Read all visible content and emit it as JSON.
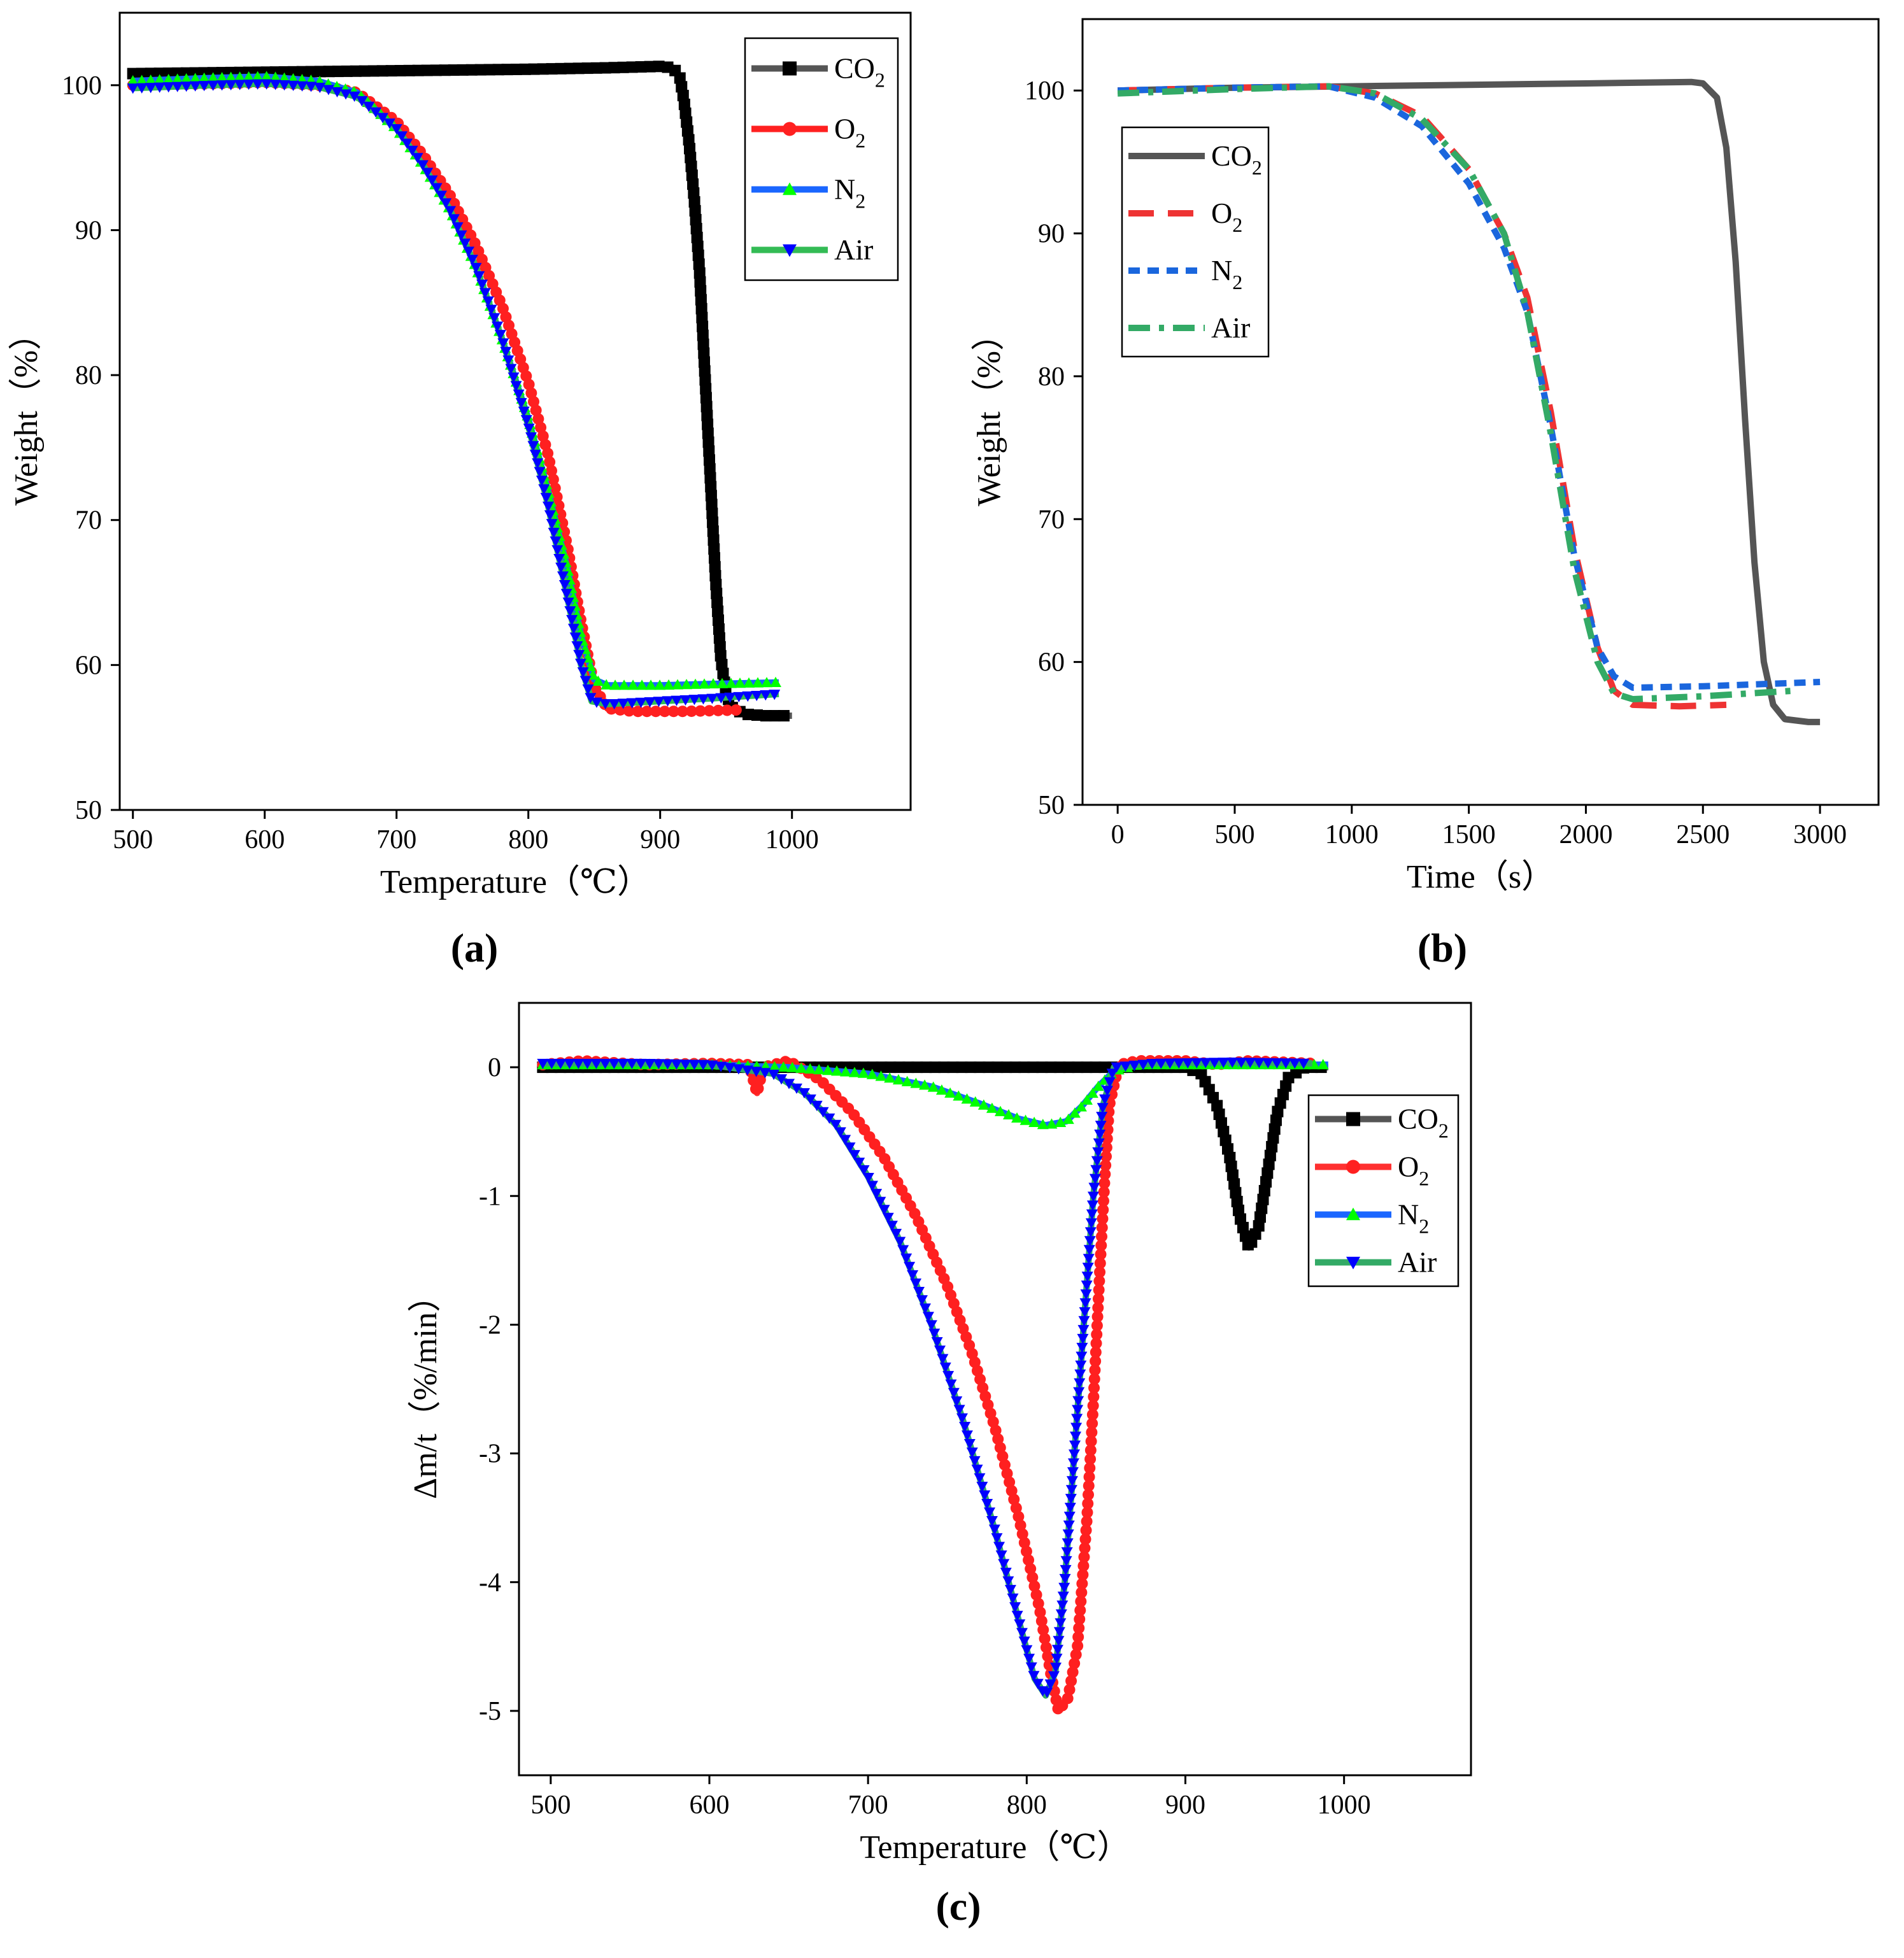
{
  "figure": {
    "panel_labels": [
      "(a)",
      "(b)",
      "(c)"
    ]
  },
  "chart_data": [
    {
      "type": "line",
      "panel": "(a)",
      "xlabel": "Temperature（℃）",
      "ylabel": "Weight（%）",
      "xlim": [
        490,
        1090
      ],
      "ylim": [
        50,
        105
      ],
      "xticks": [
        500,
        600,
        700,
        800,
        900,
        1000
      ],
      "yticks": [
        50,
        60,
        70,
        80,
        90,
        100
      ],
      "grid": false,
      "legend_position": "top-right",
      "series": [
        {
          "name": "CO2",
          "label_main": "CO",
          "label_sub": "2",
          "color": "#000000",
          "line_color": "#555555",
          "marker": "square",
          "points": [
            [
              500,
              100.8
            ],
            [
              600,
              100.9
            ],
            [
              700,
              101.0
            ],
            [
              800,
              101.1
            ],
            [
              860,
              101.2
            ],
            [
              900,
              101.3
            ],
            [
              910,
              101.2
            ],
            [
              915,
              100.5
            ],
            [
              918,
              99.0
            ],
            [
              922,
              96.0
            ],
            [
              926,
              92.0
            ],
            [
              930,
              87.0
            ],
            [
              934,
              80.0
            ],
            [
              938,
              73.0
            ],
            [
              942,
              66.0
            ],
            [
              946,
              60.5
            ],
            [
              950,
              58.0
            ],
            [
              955,
              57.0
            ],
            [
              965,
              56.6
            ],
            [
              980,
              56.5
            ],
            [
              1000,
              56.5
            ]
          ]
        },
        {
          "name": "O2",
          "label_main": "O",
          "label_sub": "2",
          "color": "#ff2020",
          "line_color": "#ff2020",
          "marker": "circle",
          "points": [
            [
              500,
              100.0
            ],
            [
              560,
              100.1
            ],
            [
              600,
              100.2
            ],
            [
              640,
              100.0
            ],
            [
              670,
              99.5
            ],
            [
              700,
              97.5
            ],
            [
              720,
              95.2
            ],
            [
              740,
              92.5
            ],
            [
              760,
              89.0
            ],
            [
              780,
              84.8
            ],
            [
              800,
              79.5
            ],
            [
              815,
              74.5
            ],
            [
              830,
              68.0
            ],
            [
              840,
              63.0
            ],
            [
              850,
              58.5
            ],
            [
              860,
              57.0
            ],
            [
              880,
              56.8
            ],
            [
              920,
              56.8
            ],
            [
              960,
              56.9
            ]
          ]
        },
        {
          "name": "N2",
          "label_main": "N",
          "label_sub": "2",
          "color": "#00ff00",
          "line_color": "#1a66ff",
          "marker": "triangle-up",
          "points": [
            [
              500,
              100.3
            ],
            [
              560,
              100.5
            ],
            [
              600,
              100.6
            ],
            [
              640,
              100.3
            ],
            [
              670,
              99.5
            ],
            [
              700,
              97.0
            ],
            [
              720,
              94.5
            ],
            [
              740,
              91.5
            ],
            [
              760,
              87.5
            ],
            [
              780,
              82.5
            ],
            [
              800,
              77.0
            ],
            [
              815,
              72.0
            ],
            [
              830,
              66.5
            ],
            [
              840,
              62.0
            ],
            [
              850,
              59.0
            ],
            [
              860,
              58.6
            ],
            [
              900,
              58.6
            ],
            [
              940,
              58.7
            ],
            [
              990,
              58.8
            ]
          ]
        },
        {
          "name": "Air",
          "label_main": "Air",
          "label_sub": "",
          "color": "#0000ff",
          "line_color": "#33bb55",
          "marker": "triangle-down",
          "points": [
            [
              500,
              99.8
            ],
            [
              560,
              100.0
            ],
            [
              600,
              100.1
            ],
            [
              640,
              99.9
            ],
            [
              670,
              99.2
            ],
            [
              700,
              97.0
            ],
            [
              720,
              94.5
            ],
            [
              740,
              91.5
            ],
            [
              760,
              87.5
            ],
            [
              780,
              82.5
            ],
            [
              800,
              76.5
            ],
            [
              815,
              71.0
            ],
            [
              830,
              64.5
            ],
            [
              840,
              60.0
            ],
            [
              848,
              57.5
            ],
            [
              860,
              57.3
            ],
            [
              900,
              57.5
            ],
            [
              940,
              57.7
            ],
            [
              990,
              58.0
            ]
          ]
        }
      ]
    },
    {
      "type": "line",
      "panel": "(b)",
      "xlabel": "Time（s）",
      "ylabel": "Weight（%）",
      "xlim": [
        -150,
        3250
      ],
      "ylim": [
        50,
        105
      ],
      "xticks": [
        0,
        500,
        1000,
        1500,
        2000,
        2500,
        3000
      ],
      "yticks": [
        50,
        60,
        70,
        80,
        90,
        100
      ],
      "grid": false,
      "legend_position": "top-left",
      "series": [
        {
          "name": "CO2",
          "label_main": "CO",
          "label_sub": "2",
          "color": "#555555",
          "dash": "solid",
          "points": [
            [
              0,
              100.0
            ],
            [
              500,
              100.2
            ],
            [
              1000,
              100.3
            ],
            [
              1500,
              100.4
            ],
            [
              2000,
              100.5
            ],
            [
              2450,
              100.6
            ],
            [
              2500,
              100.5
            ],
            [
              2560,
              99.5
            ],
            [
              2600,
              96.0
            ],
            [
              2640,
              88.0
            ],
            [
              2680,
              77.0
            ],
            [
              2720,
              67.0
            ],
            [
              2760,
              60.0
            ],
            [
              2800,
              57.0
            ],
            [
              2850,
              56.0
            ],
            [
              2950,
              55.8
            ],
            [
              3000,
              55.8
            ]
          ]
        },
        {
          "name": "O2",
          "label_main": "O",
          "label_sub": "2",
          "color": "#ee3333",
          "dash": "long",
          "points": [
            [
              0,
              100.0
            ],
            [
              500,
              100.2
            ],
            [
              900,
              100.3
            ],
            [
              1100,
              99.8
            ],
            [
              1300,
              98.2
            ],
            [
              1500,
              94.5
            ],
            [
              1650,
              90.0
            ],
            [
              1750,
              85.5
            ],
            [
              1850,
              77.5
            ],
            [
              1950,
              68.0
            ],
            [
              2050,
              61.0
            ],
            [
              2120,
              58.0
            ],
            [
              2200,
              57.0
            ],
            [
              2400,
              56.9
            ],
            [
              2600,
              57.0
            ]
          ]
        },
        {
          "name": "N2",
          "label_main": "N",
          "label_sub": "2",
          "color": "#1a66dd",
          "dash": "short",
          "points": [
            [
              0,
              100.0
            ],
            [
              500,
              100.2
            ],
            [
              900,
              100.3
            ],
            [
              1100,
              99.5
            ],
            [
              1300,
              97.5
            ],
            [
              1500,
              93.5
            ],
            [
              1650,
              89.0
            ],
            [
              1750,
              84.5
            ],
            [
              1850,
              76.5
            ],
            [
              1950,
              67.5
            ],
            [
              2050,
              61.0
            ],
            [
              2120,
              59.0
            ],
            [
              2200,
              58.2
            ],
            [
              2500,
              58.3
            ],
            [
              3000,
              58.6
            ]
          ]
        },
        {
          "name": "Air",
          "label_main": "Air",
          "label_sub": "",
          "color": "#33aa66",
          "dash": "dashdot",
          "points": [
            [
              0,
              99.8
            ],
            [
              500,
              100.1
            ],
            [
              900,
              100.3
            ],
            [
              1100,
              99.8
            ],
            [
              1300,
              98.0
            ],
            [
              1500,
              94.5
            ],
            [
              1650,
              90.0
            ],
            [
              1750,
              84.5
            ],
            [
              1850,
              76.0
            ],
            [
              1950,
              66.5
            ],
            [
              2050,
              60.0
            ],
            [
              2120,
              57.8
            ],
            [
              2200,
              57.4
            ],
            [
              2500,
              57.6
            ],
            [
              2900,
              58.0
            ]
          ]
        }
      ]
    },
    {
      "type": "line",
      "panel": "(c)",
      "xlabel": "Temperature（℃）",
      "ylabel": "Δm/t（%/min）",
      "xlim": [
        480,
        1080
      ],
      "ylim": [
        -5.5,
        0.5
      ],
      "xticks": [
        500,
        600,
        700,
        800,
        900,
        1000
      ],
      "yticks": [
        0,
        -1,
        -2,
        -3,
        -4,
        -5
      ],
      "grid": false,
      "legend_position": "top-right",
      "series": [
        {
          "name": "CO2",
          "label_main": "CO",
          "label_sub": "2",
          "color": "#000000",
          "line_color": "#555555",
          "marker": "square",
          "points": [
            [
              495,
              0.0
            ],
            [
              600,
              0.0
            ],
            [
              700,
              0.0
            ],
            [
              800,
              0.0
            ],
            [
              900,
              0.0
            ],
            [
              910,
              -0.05
            ],
            [
              920,
              -0.3
            ],
            [
              928,
              -0.7
            ],
            [
              934,
              -1.15
            ],
            [
              940,
              -1.4
            ],
            [
              946,
              -1.25
            ],
            [
              952,
              -0.8
            ],
            [
              958,
              -0.35
            ],
            [
              965,
              -0.08
            ],
            [
              975,
              0.0
            ],
            [
              990,
              0.0
            ]
          ]
        },
        {
          "name": "O2",
          "label_main": "O",
          "label_sub": "2",
          "color": "#ff2020",
          "line_color": "#ff3030",
          "marker": "circle",
          "points": [
            [
              495,
              0.02
            ],
            [
              520,
              0.05
            ],
            [
              560,
              0.02
            ],
            [
              600,
              0.03
            ],
            [
              625,
              0.02
            ],
            [
              630,
              -0.2
            ],
            [
              634,
              0.0
            ],
            [
              650,
              0.05
            ],
            [
              670,
              -0.1
            ],
            [
              690,
              -0.35
            ],
            [
              710,
              -0.7
            ],
            [
              730,
              -1.15
            ],
            [
              750,
              -1.7
            ],
            [
              765,
              -2.2
            ],
            [
              780,
              -2.8
            ],
            [
              795,
              -3.5
            ],
            [
              808,
              -4.2
            ],
            [
              815,
              -4.7
            ],
            [
              820,
              -5.0
            ],
            [
              826,
              -4.9
            ],
            [
              832,
              -4.5
            ],
            [
              838,
              -3.5
            ],
            [
              842,
              -2.6
            ],
            [
              846,
              -1.6
            ],
            [
              849,
              -0.9
            ],
            [
              852,
              -0.3
            ],
            [
              858,
              0.02
            ],
            [
              870,
              0.05
            ],
            [
              900,
              0.05
            ],
            [
              920,
              0.02
            ],
            [
              940,
              0.05
            ],
            [
              980,
              0.03
            ]
          ]
        },
        {
          "name": "N2",
          "label_main": "N",
          "label_sub": "2",
          "color": "#00ff00",
          "line_color": "#1a66ff",
          "marker": "triangle-up",
          "points": [
            [
              495,
              0.02
            ],
            [
              600,
              0.02
            ],
            [
              650,
              0.0
            ],
            [
              700,
              -0.05
            ],
            [
              740,
              -0.15
            ],
            [
              770,
              -0.28
            ],
            [
              795,
              -0.4
            ],
            [
              812,
              -0.45
            ],
            [
              825,
              -0.42
            ],
            [
              835,
              -0.3
            ],
            [
              845,
              -0.15
            ],
            [
              855,
              -0.03
            ],
            [
              870,
              0.02
            ],
            [
              930,
              0.02
            ],
            [
              990,
              0.02
            ]
          ]
        },
        {
          "name": "Air",
          "label_main": "Air",
          "label_sub": "",
          "color": "#0000ff",
          "line_color": "#33aa66",
          "marker": "triangle-down",
          "points": [
            [
              495,
              0.03
            ],
            [
              560,
              0.03
            ],
            [
              600,
              0.02
            ],
            [
              640,
              -0.05
            ],
            [
              660,
              -0.2
            ],
            [
              680,
              -0.45
            ],
            [
              700,
              -0.85
            ],
            [
              720,
              -1.35
            ],
            [
              740,
              -2.0
            ],
            [
              760,
              -2.75
            ],
            [
              780,
              -3.6
            ],
            [
              795,
              -4.3
            ],
            [
              805,
              -4.75
            ],
            [
              812,
              -4.88
            ],
            [
              818,
              -4.7
            ],
            [
              824,
              -4.0
            ],
            [
              830,
              -3.0
            ],
            [
              836,
              -2.0
            ],
            [
              842,
              -1.0
            ],
            [
              848,
              -0.3
            ],
            [
              855,
              0.0
            ],
            [
              880,
              0.03
            ],
            [
              930,
              0.04
            ],
            [
              980,
              0.03
            ]
          ]
        }
      ]
    }
  ]
}
